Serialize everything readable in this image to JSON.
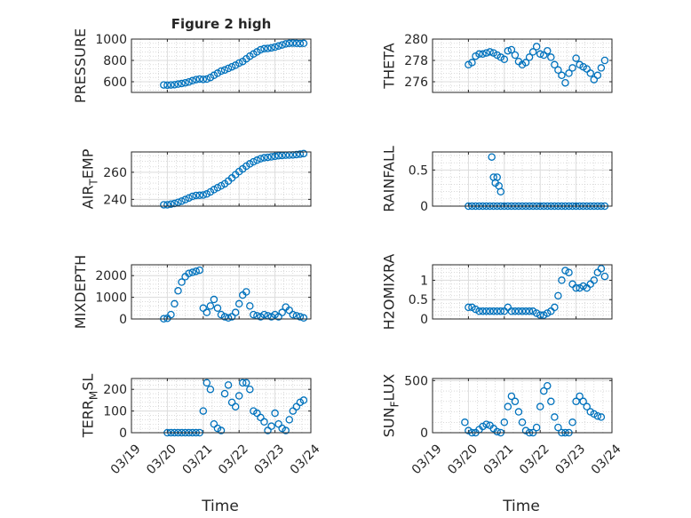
{
  "chart_data": [
    {
      "type": "scatter",
      "id": "pressure",
      "title": "Figure 2 high",
      "ylabel": "PRESSURE",
      "ylim": [
        500,
        1000
      ],
      "yticks": [
        600,
        800,
        1000
      ],
      "xlim": [
        19,
        24
      ],
      "xticks": [
        19,
        20,
        21,
        22,
        23,
        24
      ],
      "xticklabels": [
        "03/19",
        "03/20",
        "03/21",
        "03/22",
        "03/23",
        "03/24"
      ],
      "xlabel": "",
      "grid": true,
      "series": [
        {
          "x": [
            19.9,
            20.0,
            20.1,
            20.2,
            20.3,
            20.4,
            20.5,
            20.6,
            20.7,
            20.8,
            20.9,
            21.0,
            21.1,
            21.2,
            21.3,
            21.4,
            21.5,
            21.6,
            21.7,
            21.8,
            21.9,
            22.0,
            22.1,
            22.2,
            22.3,
            22.4,
            22.5,
            22.6,
            22.7,
            22.8,
            22.9,
            23.0,
            23.1,
            23.2,
            23.3,
            23.4,
            23.5,
            23.6,
            23.7,
            23.8
          ],
          "y": [
            570,
            568,
            570,
            572,
            578,
            583,
            590,
            598,
            610,
            620,
            625,
            622,
            625,
            640,
            660,
            680,
            700,
            710,
            725,
            740,
            755,
            775,
            790,
            815,
            840,
            860,
            880,
            900,
            910,
            912,
            918,
            925,
            935,
            945,
            955,
            960,
            962,
            960,
            958,
            960
          ]
        }
      ]
    },
    {
      "type": "scatter",
      "id": "theta",
      "title": "",
      "ylabel": "THETA",
      "ylim": [
        275,
        280
      ],
      "yticks": [
        276,
        278,
        280
      ],
      "xlim": [
        19,
        24
      ],
      "xticks": [
        19,
        20,
        21,
        22,
        23,
        24
      ],
      "xticklabels": [
        "03/19",
        "03/20",
        "03/21",
        "03/22",
        "03/23",
        "03/24"
      ],
      "xlabel": "",
      "grid": true,
      "series": [
        {
          "x": [
            20.0,
            20.1,
            20.2,
            20.3,
            20.4,
            20.5,
            20.6,
            20.7,
            20.8,
            20.9,
            21.0,
            21.1,
            21.2,
            21.3,
            21.4,
            21.5,
            21.6,
            21.7,
            21.8,
            21.9,
            22.0,
            22.1,
            22.2,
            22.3,
            22.4,
            22.5,
            22.6,
            22.7,
            22.8,
            22.9,
            23.0,
            23.1,
            23.2,
            23.3,
            23.4,
            23.5,
            23.6,
            23.7,
            23.8
          ],
          "y": [
            277.6,
            277.8,
            278.4,
            278.6,
            278.6,
            278.7,
            278.8,
            278.7,
            278.5,
            278.3,
            278.1,
            278.9,
            279.0,
            278.5,
            277.9,
            277.6,
            277.8,
            278.3,
            278.8,
            279.3,
            278.6,
            278.5,
            278.9,
            278.3,
            277.6,
            277.1,
            276.6,
            275.9,
            276.8,
            277.3,
            278.2,
            277.6,
            277.4,
            277.2,
            276.8,
            276.2,
            276.6,
            277.3,
            278.0
          ]
        }
      ]
    },
    {
      "type": "scatter",
      "id": "air_temp",
      "title": "",
      "ylabel": "AIR_TEMP",
      "ylim": [
        235,
        275
      ],
      "yticks": [
        240,
        260
      ],
      "xlim": [
        19,
        24
      ],
      "xticks": [
        19,
        20,
        21,
        22,
        23,
        24
      ],
      "xticklabels": [
        "03/19",
        "03/20",
        "03/21",
        "03/22",
        "03/23",
        "03/24"
      ],
      "xlabel": "",
      "grid": true,
      "series": [
        {
          "x": [
            19.9,
            20.0,
            20.1,
            20.2,
            20.3,
            20.4,
            20.5,
            20.6,
            20.7,
            20.8,
            20.9,
            21.0,
            21.1,
            21.2,
            21.3,
            21.4,
            21.5,
            21.6,
            21.7,
            21.8,
            21.9,
            22.0,
            22.1,
            22.2,
            22.3,
            22.4,
            22.5,
            22.6,
            22.7,
            22.8,
            22.9,
            23.0,
            23.1,
            23.2,
            23.3,
            23.4,
            23.5,
            23.6,
            23.7,
            23.8
          ],
          "y": [
            236,
            236,
            236.5,
            237,
            237.8,
            238.7,
            239.8,
            241,
            242.2,
            242.9,
            243,
            243.2,
            244,
            245.5,
            247.2,
            248.6,
            250,
            251.5,
            253.5,
            255.8,
            258.2,
            260.5,
            262.5,
            264.5,
            266.2,
            267.7,
            268.9,
            270,
            270.7,
            271,
            271.4,
            271.8,
            272.2,
            272.4,
            272.6,
            272.7,
            272.8,
            273,
            273.4,
            273.8
          ]
        }
      ]
    },
    {
      "type": "scatter",
      "id": "rainfall",
      "title": "",
      "ylabel": "RAINFALL",
      "ylim": [
        0,
        0.75
      ],
      "yticks": [
        0,
        0.5
      ],
      "xlim": [
        19,
        24
      ],
      "xticks": [
        19,
        20,
        21,
        22,
        23,
        24
      ],
      "xticklabels": [
        "03/19",
        "03/20",
        "03/21",
        "03/22",
        "03/23",
        "03/24"
      ],
      "xlabel": "",
      "grid": true,
      "series": [
        {
          "x": [
            20.0,
            20.1,
            20.2,
            20.3,
            20.4,
            20.5,
            20.6,
            20.7,
            20.8,
            20.9,
            21.0,
            21.1,
            21.2,
            21.3,
            21.4,
            21.5,
            21.6,
            21.7,
            21.8,
            21.9,
            22.0,
            22.1,
            22.2,
            22.3,
            22.4,
            22.5,
            22.6,
            22.7,
            22.8,
            22.9,
            23.0,
            23.1,
            23.2,
            23.3,
            23.4,
            23.5,
            23.6,
            23.7,
            23.8,
            20.65,
            20.7,
            20.75,
            20.8,
            20.85,
            20.9
          ],
          "y": [
            0,
            0,
            0,
            0,
            0,
            0,
            0,
            0,
            0,
            0,
            0,
            0,
            0,
            0,
            0,
            0,
            0,
            0,
            0,
            0,
            0,
            0,
            0,
            0,
            0,
            0,
            0,
            0,
            0,
            0,
            0,
            0,
            0,
            0,
            0,
            0,
            0,
            0,
            0,
            0.68,
            0.4,
            0.32,
            0.4,
            0.28,
            0.2
          ]
        }
      ]
    },
    {
      "type": "scatter",
      "id": "mixdepth",
      "title": "",
      "ylabel": "MIXDEPTH",
      "ylim": [
        0,
        2500
      ],
      "yticks": [
        0,
        1000,
        2000
      ],
      "xlim": [
        19,
        24
      ],
      "xticks": [
        19,
        20,
        21,
        22,
        23,
        24
      ],
      "xticklabels": [
        "03/19",
        "03/20",
        "03/21",
        "03/22",
        "03/23",
        "03/24"
      ],
      "xlabel": "",
      "grid": true,
      "series": [
        {
          "x": [
            19.9,
            20.0,
            20.1,
            20.2,
            20.3,
            20.4,
            20.5,
            20.6,
            20.7,
            20.8,
            20.9,
            21.0,
            21.1,
            21.2,
            21.3,
            21.4,
            21.5,
            21.6,
            21.7,
            21.8,
            21.9,
            22.0,
            22.1,
            22.2,
            22.3,
            22.4,
            22.5,
            22.6,
            22.7,
            22.8,
            22.9,
            23.0,
            23.1,
            23.2,
            23.3,
            23.4,
            23.5,
            23.6,
            23.7,
            23.8
          ],
          "y": [
            10,
            30,
            200,
            700,
            1300,
            1700,
            1950,
            2100,
            2150,
            2200,
            2250,
            500,
            300,
            600,
            900,
            500,
            200,
            100,
            50,
            100,
            300,
            700,
            1100,
            1250,
            600,
            200,
            150,
            100,
            200,
            150,
            100,
            200,
            100,
            300,
            550,
            400,
            200,
            150,
            100,
            50
          ]
        }
      ]
    },
    {
      "type": "scatter",
      "id": "h2omixra",
      "title": "",
      "ylabel": "H2OMIXRA",
      "ylim": [
        0,
        1.4
      ],
      "yticks": [
        0,
        0.5,
        1
      ],
      "xlim": [
        19,
        24
      ],
      "xticks": [
        19,
        20,
        21,
        22,
        23,
        24
      ],
      "xticklabels": [
        "03/19",
        "03/20",
        "03/21",
        "03/22",
        "03/23",
        "03/24"
      ],
      "xlabel": "",
      "grid": true,
      "series": [
        {
          "x": [
            20.0,
            20.1,
            20.2,
            20.3,
            20.4,
            20.5,
            20.6,
            20.7,
            20.8,
            20.9,
            21.0,
            21.1,
            21.2,
            21.3,
            21.4,
            21.5,
            21.6,
            21.7,
            21.8,
            21.9,
            22.0,
            22.1,
            22.2,
            22.3,
            22.4,
            22.5,
            22.6,
            22.7,
            22.8,
            22.9,
            23.0,
            23.1,
            23.2,
            23.3,
            23.4,
            23.5,
            23.6,
            23.7,
            23.8
          ],
          "y": [
            0.3,
            0.3,
            0.25,
            0.2,
            0.2,
            0.2,
            0.2,
            0.2,
            0.2,
            0.2,
            0.2,
            0.3,
            0.2,
            0.2,
            0.2,
            0.2,
            0.2,
            0.2,
            0.2,
            0.15,
            0.1,
            0.1,
            0.15,
            0.2,
            0.3,
            0.6,
            1.0,
            1.25,
            1.2,
            0.9,
            0.8,
            0.8,
            0.85,
            0.8,
            0.9,
            1.0,
            1.2,
            1.3,
            1.1
          ]
        }
      ]
    },
    {
      "type": "scatter",
      "id": "terr_msl",
      "title": "",
      "ylabel": "TERR_MSL",
      "ylim": [
        0,
        250
      ],
      "yticks": [
        0,
        100,
        200
      ],
      "xlim": [
        19,
        24
      ],
      "xticks": [
        19,
        20,
        21,
        22,
        23,
        24
      ],
      "xticklabels": [
        "03/19",
        "03/20",
        "03/21",
        "03/22",
        "03/23",
        "03/24"
      ],
      "xlabel": "Time",
      "grid": true,
      "series": [
        {
          "x": [
            20.0,
            20.1,
            20.2,
            20.3,
            20.4,
            20.5,
            20.6,
            20.7,
            20.8,
            20.9,
            21.0,
            21.1,
            21.2,
            21.3,
            21.4,
            21.5,
            21.6,
            21.7,
            21.8,
            21.9,
            22.0,
            22.1,
            22.2,
            22.3,
            22.4,
            22.5,
            22.6,
            22.7,
            22.8,
            22.9,
            23.0,
            23.1,
            23.2,
            23.3,
            23.4,
            23.5,
            23.6,
            23.7,
            23.8
          ],
          "y": [
            0,
            0,
            0,
            0,
            0,
            0,
            0,
            0,
            0,
            0,
            100,
            230,
            200,
            40,
            20,
            10,
            180,
            220,
            140,
            120,
            170,
            230,
            230,
            200,
            100,
            90,
            70,
            50,
            10,
            30,
            90,
            40,
            20,
            10,
            60,
            100,
            120,
            140,
            150
          ]
        }
      ]
    },
    {
      "type": "scatter",
      "id": "sun_flux",
      "title": "",
      "ylabel": "SUN_FLUX",
      "ylim": [
        0,
        520
      ],
      "yticks": [
        0,
        500
      ],
      "xlim": [
        19,
        24
      ],
      "xticks": [
        19,
        20,
        21,
        22,
        23,
        24
      ],
      "xticklabels": [
        "03/19",
        "03/20",
        "03/21",
        "03/22",
        "03/23",
        "03/24"
      ],
      "xlabel": "Time",
      "grid": true,
      "series": [
        {
          "x": [
            19.9,
            20.0,
            20.1,
            20.2,
            20.3,
            20.4,
            20.5,
            20.6,
            20.7,
            20.8,
            20.9,
            21.0,
            21.1,
            21.2,
            21.3,
            21.4,
            21.5,
            21.6,
            21.7,
            21.8,
            21.9,
            22.0,
            22.1,
            22.2,
            22.3,
            22.4,
            22.5,
            22.6,
            22.7,
            22.8,
            22.9,
            23.0,
            23.1,
            23.2,
            23.3,
            23.4,
            23.5,
            23.6,
            23.7
          ],
          "y": [
            100,
            20,
            0,
            0,
            30,
            60,
            80,
            70,
            40,
            10,
            0,
            100,
            250,
            350,
            300,
            200,
            100,
            20,
            0,
            0,
            50,
            250,
            400,
            450,
            300,
            150,
            50,
            0,
            0,
            0,
            100,
            300,
            350,
            300,
            250,
            200,
            180,
            160,
            150
          ]
        }
      ]
    }
  ]
}
